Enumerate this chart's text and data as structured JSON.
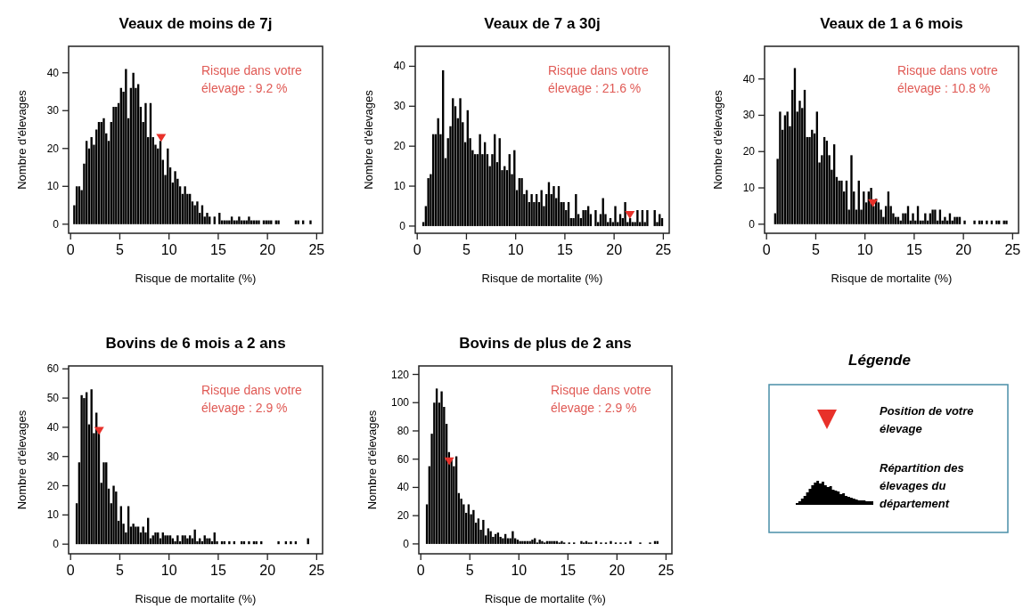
{
  "chart_data": [
    {
      "type": "histogram",
      "title": "Veaux de moins de 7j",
      "xlabel": "Risque de mortalite (%)",
      "ylabel": "Nombre d'élevages",
      "annotations": [
        "Risque dans votre élevage : 9.2 %"
      ],
      "xlim": [
        -0.2,
        25.6
      ],
      "ylim": [
        -2.4,
        47
      ],
      "xticks": [
        0,
        5,
        10,
        15,
        20,
        25
      ],
      "yticks": [
        0,
        10,
        20,
        30,
        40
      ],
      "series": [
        {
          "type": "histogram",
          "color": "#000000",
          "bins": [
            0,
            0.25,
            0.5,
            0.75,
            1,
            1.25,
            1.5,
            1.75,
            2,
            2.25,
            2.5,
            2.75,
            3,
            3.25,
            3.5,
            3.75,
            4,
            4.25,
            4.5,
            4.75,
            5,
            5.25,
            5.5,
            5.75,
            6,
            6.25,
            6.5,
            6.75,
            7,
            7.25,
            7.5,
            7.75,
            8,
            8.25,
            8.5,
            8.75,
            9,
            9.25,
            9.5,
            9.75,
            10,
            10.25,
            10.5,
            10.75,
            11,
            11.25,
            11.5,
            11.75,
            12,
            12.25,
            12.5,
            12.75,
            13,
            13.25,
            13.5,
            13.75,
            14,
            14.25,
            14.5,
            14.75,
            15,
            15.25,
            15.5,
            15.75,
            16,
            16.25,
            16.5,
            16.75,
            17,
            17.25,
            17.5,
            17.75,
            18,
            18.25,
            18.5,
            18.75,
            19,
            19.25,
            19.5,
            19.75,
            20,
            20.25,
            20.5,
            20.75,
            21,
            21.25,
            21.5,
            21.75,
            22,
            22.25,
            22.5,
            22.75,
            23,
            23.25,
            23.5,
            23.75,
            24,
            24.25,
            24.5,
            24.75,
            25
          ],
          "values": [
            0,
            5,
            10,
            10,
            9,
            16,
            22,
            20,
            23,
            21,
            25,
            27,
            27,
            28,
            24,
            22,
            27,
            31,
            31,
            32,
            36,
            35,
            41,
            28,
            36,
            40,
            36,
            37,
            31,
            27,
            32,
            23,
            32,
            23,
            21,
            20,
            22,
            17,
            13,
            20,
            15,
            11,
            14,
            12,
            10,
            8,
            10,
            8,
            8,
            6,
            5,
            6,
            3,
            5,
            2,
            3,
            2,
            0,
            2,
            0,
            3,
            1,
            1,
            1,
            1,
            2,
            1,
            1,
            2,
            1,
            1,
            1,
            2,
            1,
            1,
            1,
            1,
            0,
            1,
            1,
            1,
            1,
            0,
            1,
            1,
            0,
            0,
            0,
            0,
            0,
            0,
            1,
            1,
            0,
            1,
            0,
            0,
            1,
            0,
            0
          ]
        },
        {
          "type": "scatter",
          "color": "#e8312a",
          "marker": "triangle",
          "x": [
            9.2
          ],
          "values": [
            23
          ]
        }
      ]
    },
    {
      "type": "histogram",
      "title": "Veaux de 7 a 30j",
      "xlabel": "Risque de mortalite (%)",
      "ylabel": "Nombre d'élevages",
      "annotations": [
        "Risque dans votre élevage : 21.6 %"
      ],
      "xlim": [
        -0.2,
        25.6
      ],
      "ylim": [
        -1.8,
        45
      ],
      "xticks": [
        0,
        5,
        10,
        15,
        20,
        25
      ],
      "yticks": [
        0,
        10,
        20,
        30,
        40
      ],
      "series": [
        {
          "type": "histogram",
          "color": "#000000",
          "bins": [
            0,
            0.25,
            0.5,
            0.75,
            1,
            1.25,
            1.5,
            1.75,
            2,
            2.25,
            2.5,
            2.75,
            3,
            3.25,
            3.5,
            3.75,
            4,
            4.25,
            4.5,
            4.75,
            5,
            5.25,
            5.5,
            5.75,
            6,
            6.25,
            6.5,
            6.75,
            7,
            7.25,
            7.5,
            7.75,
            8,
            8.25,
            8.5,
            8.75,
            9,
            9.25,
            9.5,
            9.75,
            10,
            10.25,
            10.5,
            10.75,
            11,
            11.25,
            11.5,
            11.75,
            12,
            12.25,
            12.5,
            12.75,
            13,
            13.25,
            13.5,
            13.75,
            14,
            14.25,
            14.5,
            14.75,
            15,
            15.25,
            15.5,
            15.75,
            16,
            16.25,
            16.5,
            16.75,
            17,
            17.25,
            17.5,
            17.75,
            18,
            18.25,
            18.5,
            18.75,
            19,
            19.25,
            19.5,
            19.75,
            20,
            20.25,
            20.5,
            20.75,
            21,
            21.25,
            21.5,
            21.75,
            22,
            22.25,
            22.5,
            22.75,
            23,
            23.25,
            23.5,
            23.75,
            24,
            24.25,
            24.5,
            24.75,
            25
          ],
          "values": [
            0,
            0,
            1,
            5,
            12,
            13,
            23,
            23,
            27,
            23,
            39,
            17,
            22,
            25,
            32,
            30,
            27,
            32,
            26,
            21,
            29,
            22,
            19,
            18,
            18,
            23,
            18,
            21,
            18,
            15,
            18,
            23,
            16,
            22,
            14,
            15,
            14,
            18,
            13,
            19,
            9,
            12,
            12,
            8,
            9,
            6,
            8,
            6,
            8,
            6,
            9,
            5,
            8,
            11,
            8,
            10,
            7,
            10,
            6,
            6,
            4,
            6,
            2,
            2,
            8,
            3,
            2,
            4,
            4,
            5,
            3,
            0,
            4,
            1,
            3,
            7,
            3,
            1,
            2,
            1,
            5,
            1,
            3,
            2,
            6,
            1,
            2,
            1,
            1,
            4,
            1,
            4,
            1,
            4,
            0,
            0,
            4,
            1,
            3,
            2
          ]
        },
        {
          "type": "scatter",
          "color": "#e8312a",
          "marker": "triangle",
          "x": [
            21.6
          ],
          "values": [
            3
          ]
        }
      ]
    },
    {
      "type": "histogram",
      "title": "Veaux de 1 a 6 mois",
      "xlabel": "Risque de mortalite (%)",
      "ylabel": "Nombre d'élevages",
      "annotations": [
        "Risque dans votre élevage : 10.8 %"
      ],
      "xlim": [
        -0.2,
        25.6
      ],
      "ylim": [
        -2.5,
        49
      ],
      "xticks": [
        0,
        5,
        10,
        15,
        20,
        25
      ],
      "yticks": [
        0,
        10,
        20,
        30,
        40
      ],
      "series": [
        {
          "type": "histogram",
          "color": "#000000",
          "bins": [
            0,
            0.25,
            0.5,
            0.75,
            1,
            1.25,
            1.5,
            1.75,
            2,
            2.25,
            2.5,
            2.75,
            3,
            3.25,
            3.5,
            3.75,
            4,
            4.25,
            4.5,
            4.75,
            5,
            5.25,
            5.5,
            5.75,
            6,
            6.25,
            6.5,
            6.75,
            7,
            7.25,
            7.5,
            7.75,
            8,
            8.25,
            8.5,
            8.75,
            9,
            9.25,
            9.5,
            9.75,
            10,
            10.25,
            10.5,
            10.75,
            11,
            11.25,
            11.5,
            11.75,
            12,
            12.25,
            12.5,
            12.75,
            13,
            13.25,
            13.5,
            13.75,
            14,
            14.25,
            14.5,
            14.75,
            15,
            15.25,
            15.5,
            15.75,
            16,
            16.25,
            16.5,
            16.75,
            17,
            17.25,
            17.5,
            17.75,
            18,
            18.25,
            18.5,
            18.75,
            19,
            19.25,
            19.5,
            19.75,
            20,
            20.25,
            20.5,
            20.75,
            21,
            21.25,
            21.5,
            21.75,
            22,
            22.25,
            22.5,
            22.75,
            23,
            23.25,
            23.5,
            23.75,
            24,
            24.25,
            24.5,
            24.75,
            25
          ],
          "values": [
            0,
            0,
            0,
            3,
            18,
            31,
            26,
            30,
            31,
            27,
            37,
            43,
            31,
            34,
            32,
            37,
            24,
            24,
            26,
            25,
            31,
            17,
            19,
            24,
            23,
            19,
            15,
            22,
            13,
            12,
            12,
            9,
            12,
            4,
            19,
            9,
            4,
            12,
            4,
            9,
            6,
            9,
            10,
            5,
            7,
            6,
            4,
            2,
            5,
            9,
            5,
            3,
            2,
            2,
            1,
            3,
            3,
            5,
            1,
            3,
            1,
            5,
            1,
            1,
            3,
            1,
            3,
            4,
            4,
            1,
            4,
            1,
            2,
            1,
            3,
            1,
            2,
            2,
            2,
            0,
            1,
            0,
            0,
            0,
            1,
            0,
            1,
            1,
            0,
            1,
            0,
            1,
            0,
            1,
            1,
            0,
            1,
            1,
            0,
            0
          ]
        },
        {
          "type": "scatter",
          "color": "#e8312a",
          "marker": "triangle",
          "x": [
            10.8
          ],
          "values": [
            6
          ]
        }
      ]
    },
    {
      "type": "histogram",
      "title": "Bovins de 6 mois a 2 ans",
      "xlabel": "Risque de mortalite (%)",
      "ylabel": "Nombre d'élevages",
      "annotations": [
        "Risque dans votre élevage : 2.9 %"
      ],
      "xlim": [
        -0.2,
        25.6
      ],
      "ylim": [
        -3.3,
        61
      ],
      "xticks": [
        0,
        5,
        10,
        15,
        20,
        25
      ],
      "yticks": [
        0,
        10,
        20,
        30,
        40,
        50,
        60
      ],
      "series": [
        {
          "type": "histogram",
          "color": "#000000",
          "bins": [
            0,
            0.25,
            0.5,
            0.75,
            1,
            1.25,
            1.5,
            1.75,
            2,
            2.25,
            2.5,
            2.75,
            3,
            3.25,
            3.5,
            3.75,
            4,
            4.25,
            4.5,
            4.75,
            5,
            5.25,
            5.5,
            5.75,
            6,
            6.25,
            6.5,
            6.75,
            7,
            7.25,
            7.5,
            7.75,
            8,
            8.25,
            8.5,
            8.75,
            9,
            9.25,
            9.5,
            9.75,
            10,
            10.25,
            10.5,
            10.75,
            11,
            11.25,
            11.5,
            11.75,
            12,
            12.25,
            12.5,
            12.75,
            13,
            13.25,
            13.5,
            13.75,
            14,
            14.25,
            14.5,
            14.75,
            15,
            15.25,
            15.5,
            15.75,
            16,
            16.25,
            16.5,
            16.75,
            17,
            17.25,
            17.5,
            17.75,
            18,
            18.25,
            18.5,
            18.75,
            19,
            19.25,
            19.5,
            19.75,
            20,
            20.25,
            20.5,
            20.75,
            21,
            21.25,
            21.5,
            21.75,
            22,
            22.25,
            22.5,
            22.75,
            23,
            23.25,
            23.5,
            23.75,
            24,
            24.25,
            24.5,
            24.75,
            25
          ],
          "values": [
            0,
            0,
            14,
            28,
            51,
            50,
            52,
            41,
            53,
            38,
            45,
            38,
            21,
            28,
            28,
            19,
            14,
            20,
            18,
            8,
            13,
            7,
            4,
            13,
            6,
            7,
            6,
            6,
            4,
            6,
            4,
            9,
            2,
            3,
            4,
            4,
            2,
            4,
            3,
            3,
            3,
            2,
            1,
            3,
            1,
            3,
            3,
            2,
            3,
            2,
            5,
            1,
            2,
            1,
            3,
            2,
            2,
            1,
            4,
            1,
            0,
            1,
            1,
            0,
            1,
            0,
            1,
            0,
            0,
            1,
            1,
            0,
            1,
            0,
            1,
            1,
            0,
            1,
            0,
            0,
            0,
            0,
            0,
            0,
            1,
            0,
            0,
            1,
            0,
            1,
            0,
            1,
            0,
            0,
            0,
            0,
            2,
            0,
            0,
            0
          ]
        },
        {
          "type": "scatter",
          "color": "#e8312a",
          "marker": "triangle",
          "x": [
            2.9
          ],
          "values": [
            39
          ]
        }
      ]
    },
    {
      "type": "histogram",
      "title": "Bovins de plus de 2 ans",
      "xlabel": "Risque de mortalite (%)",
      "ylabel": "Nombre d'élevages",
      "annotations": [
        "Risque dans votre élevage : 2.9 %"
      ],
      "xlim": [
        -0.2,
        25.6
      ],
      "ylim": [
        -7,
        126
      ],
      "xticks": [
        0,
        5,
        10,
        15,
        20,
        25
      ],
      "yticks": [
        0,
        20,
        40,
        60,
        80,
        100,
        120
      ],
      "series": [
        {
          "type": "histogram",
          "color": "#000000",
          "bins": [
            0,
            0.25,
            0.5,
            0.75,
            1,
            1.25,
            1.5,
            1.75,
            2,
            2.25,
            2.5,
            2.75,
            3,
            3.25,
            3.5,
            3.75,
            4,
            4.25,
            4.5,
            4.75,
            5,
            5.25,
            5.5,
            5.75,
            6,
            6.25,
            6.5,
            6.75,
            7,
            7.25,
            7.5,
            7.75,
            8,
            8.25,
            8.5,
            8.75,
            9,
            9.25,
            9.5,
            9.75,
            10,
            10.25,
            10.5,
            10.75,
            11,
            11.25,
            11.5,
            11.75,
            12,
            12.25,
            12.5,
            12.75,
            13,
            13.25,
            13.5,
            13.75,
            14,
            14.25,
            14.5,
            14.75,
            15,
            15.25,
            15.5,
            15.75,
            16,
            16.25,
            16.5,
            16.75,
            17,
            17.25,
            17.5,
            17.75,
            18,
            18.25,
            18.5,
            18.75,
            19,
            19.25,
            19.5,
            19.75,
            20,
            20.25,
            20.5,
            20.75,
            21,
            21.25,
            21.5,
            21.75,
            22,
            22.25,
            22.5,
            22.75,
            23,
            23.25,
            23.5,
            23.75,
            24,
            24.25,
            24.5,
            24.75,
            25
          ],
          "values": [
            0,
            0,
            28,
            55,
            78,
            100,
            110,
            100,
            108,
            97,
            85,
            65,
            60,
            55,
            62,
            36,
            32,
            28,
            22,
            28,
            21,
            24,
            15,
            18,
            10,
            17,
            6,
            11,
            9,
            5,
            7,
            8,
            5,
            4,
            7,
            4,
            4,
            9,
            4,
            3,
            2,
            2,
            2,
            2,
            2,
            3,
            4,
            1,
            3,
            2,
            1,
            2,
            2,
            2,
            2,
            2,
            1,
            2,
            1,
            0,
            1,
            0,
            1,
            0,
            0,
            2,
            1,
            2,
            1,
            1,
            0,
            2,
            0,
            1,
            0,
            1,
            0,
            2,
            0,
            1,
            0,
            1,
            0,
            1,
            0,
            2,
            0,
            0,
            0,
            1,
            0,
            0,
            0,
            1,
            0,
            2,
            2,
            0,
            0,
            0
          ]
        },
        {
          "type": "scatter",
          "color": "#e8312a",
          "marker": "triangle",
          "x": [
            2.9
          ],
          "values": [
            59
          ]
        }
      ]
    },
    {
      "type": "other",
      "title": "Légende",
      "annotations": [
        "Position de votre élevage",
        "Répartition des élevages du département"
      ]
    }
  ]
}
